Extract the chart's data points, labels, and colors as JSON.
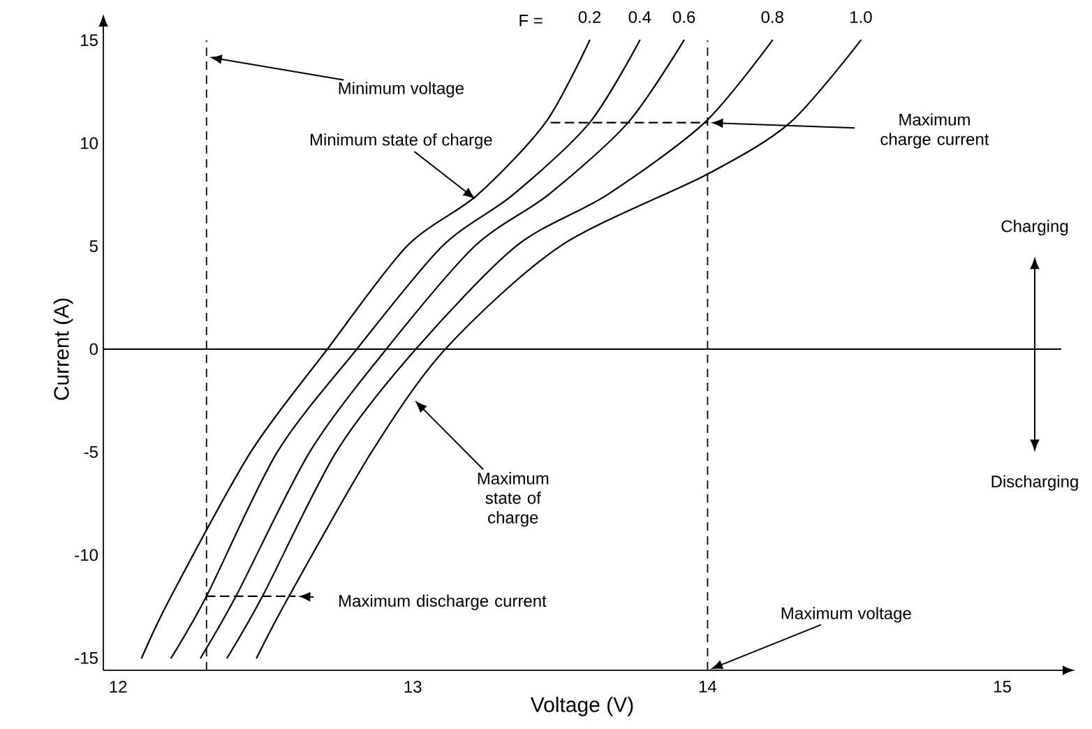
{
  "chart_data": {
    "type": "line",
    "xlabel": "Voltage (V)",
    "ylabel": "Current (A)",
    "xlim": [
      11.95,
      15.2
    ],
    "ylim": [
      -15.6,
      15.6
    ],
    "xticks": [
      12,
      13,
      14,
      15
    ],
    "yticks": [
      -15,
      -10,
      -5,
      0,
      5,
      10,
      15
    ],
    "series": [
      {
        "name": "0.2",
        "color": "#000000",
        "x": [
          12.08,
          12.18,
          12.45,
          12.71,
          12.98,
          13.22,
          13.45,
          13.6
        ],
        "values": [
          -15,
          -12,
          -5,
          0,
          5,
          7.5,
          11,
          15
        ]
      },
      {
        "name": "0.4",
        "color": "#000000",
        "x": [
          12.18,
          12.3,
          12.54,
          12.81,
          13.1,
          13.34,
          13.6,
          13.77
        ],
        "values": [
          -15,
          -12,
          -5,
          0,
          5,
          7.5,
          11,
          15
        ]
      },
      {
        "name": "0.6",
        "color": "#000000",
        "x": [
          12.28,
          12.4,
          12.65,
          12.91,
          13.21,
          13.46,
          13.73,
          13.92
        ],
        "values": [
          -15,
          -12,
          -5,
          0,
          5,
          7.5,
          11,
          15
        ]
      },
      {
        "name": "0.8",
        "color": "#000000",
        "x": [
          12.37,
          12.49,
          12.74,
          13.01,
          13.35,
          13.66,
          13.99,
          14.22
        ],
        "values": [
          -15,
          -12,
          -5,
          0,
          5,
          7.5,
          11,
          15
        ]
      },
      {
        "name": "1.0",
        "color": "#000000",
        "x": [
          12.47,
          12.58,
          12.86,
          13.11,
          13.5,
          14.0,
          14.28,
          14.52
        ],
        "values": [
          -15,
          -12,
          -5,
          0,
          5,
          8.5,
          11,
          15
        ]
      },
      {
        "type": "line",
        "line_style": "dashed",
        "color": "#000000",
        "x": [
          13.47,
          14
        ],
        "values": [
          11,
          11
        ]
      },
      {
        "type": "line",
        "line_style": "dashed",
        "color": "#000000",
        "x": [
          12.3,
          12.6
        ],
        "values": [
          -12,
          -12
        ]
      }
    ],
    "ref_lines": [
      {
        "axis": "y",
        "value": 0,
        "color": "#000000",
        "line_style": "solid"
      },
      {
        "axis": "x",
        "value": 12.3,
        "color": "#000000",
        "line_style": "dashed"
      },
      {
        "axis": "x",
        "value": 14,
        "color": "#000000",
        "line_style": "dashed"
      }
    ],
    "annotations": [
      "F =",
      "Minimum voltage",
      "Minimum state of charge",
      "Maximum charge current",
      "Maximum state of charge",
      {
        "text": "Maximum discharge current",
        "x": 12.6,
        "y": -12
      },
      "Maximum voltage",
      "Charging",
      "Discharging"
    ]
  }
}
